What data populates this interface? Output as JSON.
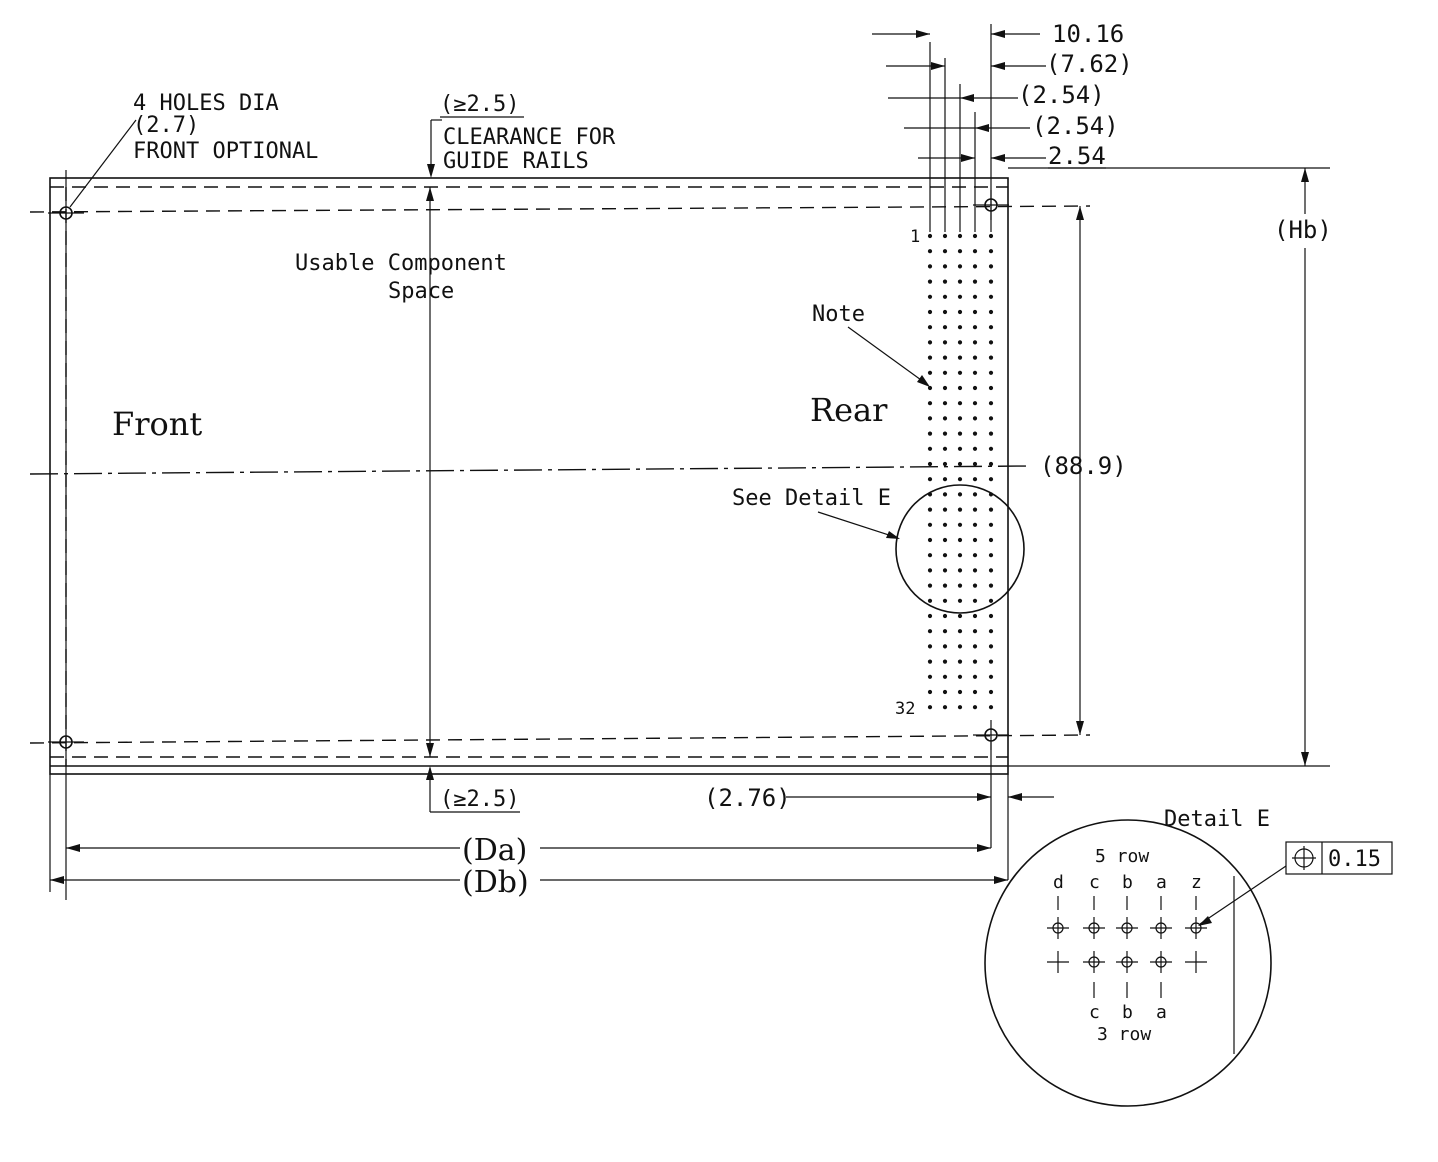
{
  "labels": {
    "holes_line1": "4 HOLES DIA",
    "holes_line2": "(2.7)",
    "holes_line3": "FRONT OPTIONAL",
    "clear_top_value": "(≥2.5)",
    "clear_line1": "CLEARANCE FOR",
    "clear_line2": "GUIDE RAILS",
    "usable_line1": "Usable Component",
    "usable_line2": "Space",
    "front": "Front",
    "rear": "Rear",
    "note": "Note",
    "see_detail": "See Detail E",
    "pin_first": "1",
    "pin_last": "32",
    "clear_bottom_value": "(≥2.5)",
    "dim_276": "(2.76)",
    "dim_da": "(Da)",
    "dim_db": "(Db)",
    "dim_hb": "(Hb)",
    "dim_889": "(88.9)"
  },
  "pitch_dims": [
    "10.16",
    "(7.62)",
    "(2.54)",
    "(2.54)",
    "2.54"
  ],
  "detail": {
    "title": "Detail E",
    "top_row_label": "5 row",
    "top_cols": [
      "d",
      "c",
      "b",
      "a",
      "z"
    ],
    "bottom_cols": [
      "c",
      "b",
      "a"
    ],
    "bottom_row_label": "3 row",
    "tolerance": "0.15",
    "tolerance_symbol": "position-icon"
  }
}
